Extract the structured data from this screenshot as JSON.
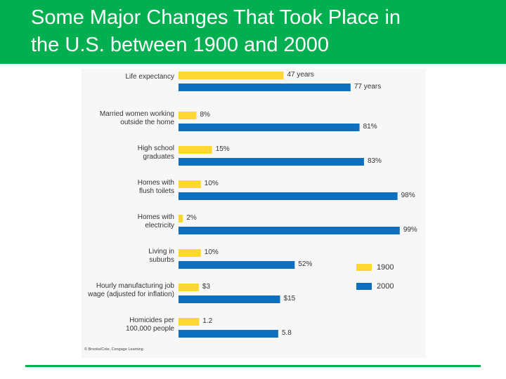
{
  "header": {
    "title_line1": "Some Major Changes That Took Place in",
    "title_line2": "the U.S. between 1900 and 2000"
  },
  "colors": {
    "accent": "#00b050",
    "series_1900": "#ffd731",
    "series_2000": "#0e6fbf"
  },
  "chart_data": {
    "type": "bar",
    "orientation": "horizontal",
    "title": "",
    "categories": [
      [
        "Life expectancy"
      ],
      [
        "Married women working",
        "outside the home"
      ],
      [
        "High school",
        "graduates"
      ],
      [
        "Homes with",
        "flush toilets"
      ],
      [
        "Homes with",
        "electricity"
      ],
      [
        "Living in",
        "suburbs"
      ],
      [
        "Hourly manufacturing job",
        "wage (adjusted for inflation)"
      ],
      [
        "Homicides per",
        "100,000 people"
      ]
    ],
    "series": [
      {
        "name": "1900",
        "values": [
          47,
          8,
          15,
          10,
          2,
          10,
          3,
          1.2
        ],
        "labels": [
          "47 years",
          "8%",
          "15%",
          "10%",
          "2%",
          "10%",
          "$3",
          "1.2"
        ]
      },
      {
        "name": "2000",
        "values": [
          77,
          81,
          83,
          98,
          99,
          52,
          15,
          5.8
        ],
        "labels": [
          "77 years",
          "81%",
          "83%",
          "98%",
          "99%",
          "52%",
          "$15",
          "5.8"
        ]
      }
    ],
    "legend_position": "right",
    "credit": "© Brooks/Cole, Cengage Learning"
  }
}
